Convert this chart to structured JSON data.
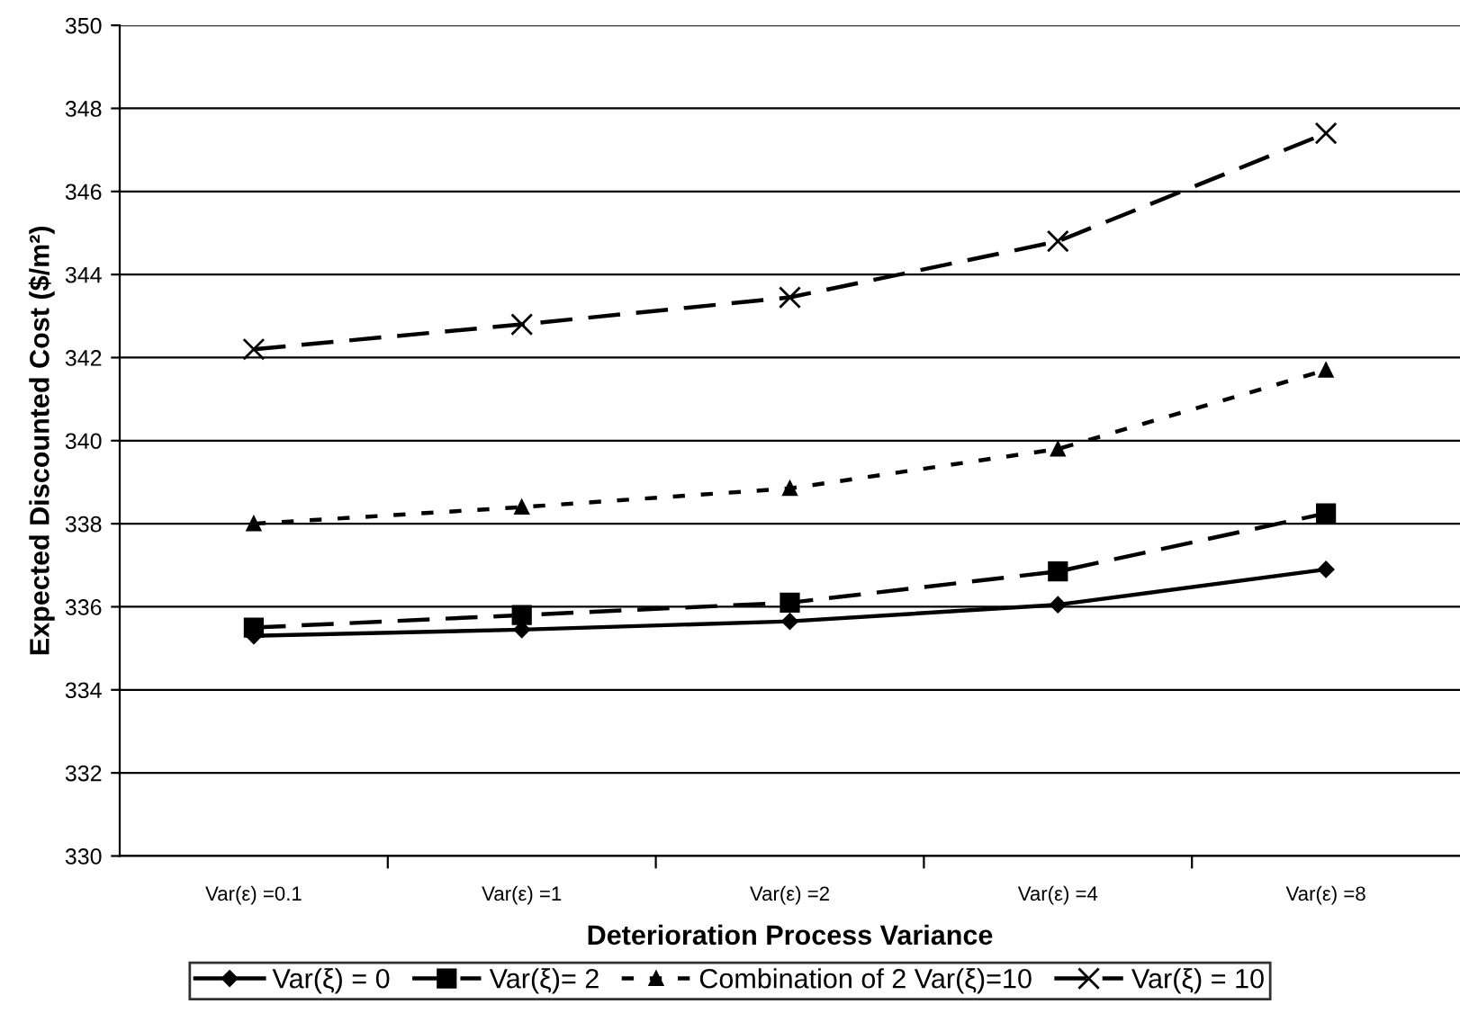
{
  "chart_data": {
    "type": "line",
    "xlabel": "Deterioration Process Variance",
    "ylabel": "Expected Discounted Cost ($/m²)",
    "categories": [
      "Var(ε) =0.1",
      "Var(ε) =1",
      "Var(ε) =2",
      "Var(ε) =4",
      "Var(ε) =8"
    ],
    "ylim": [
      330,
      350
    ],
    "yticks": [
      330,
      332,
      334,
      336,
      338,
      340,
      342,
      344,
      346,
      348,
      350
    ],
    "grid": "y",
    "legend": "bottom",
    "series": [
      {
        "name": "Var(ξ) = 0",
        "color": "#000000",
        "marker": "diamond",
        "line_style": "solid",
        "values": [
          335.3,
          335.45,
          335.65,
          336.05,
          336.9
        ]
      },
      {
        "name": "Var(ξ)= 2",
        "color": "#000000",
        "marker": "square",
        "line_style": "dashed",
        "values": [
          335.5,
          335.8,
          336.1,
          336.85,
          338.25
        ]
      },
      {
        "name": "Combination of 2 Var(ξ)=10",
        "color": "#000000",
        "marker": "triangle",
        "line_style": "dotted",
        "values": [
          338.0,
          338.4,
          338.85,
          339.8,
          341.7
        ]
      },
      {
        "name": "Var(ξ) = 10",
        "color": "#000000",
        "marker": "cross",
        "line_style": "dashed",
        "values": [
          342.2,
          342.8,
          343.45,
          344.8,
          347.4
        ]
      }
    ]
  }
}
